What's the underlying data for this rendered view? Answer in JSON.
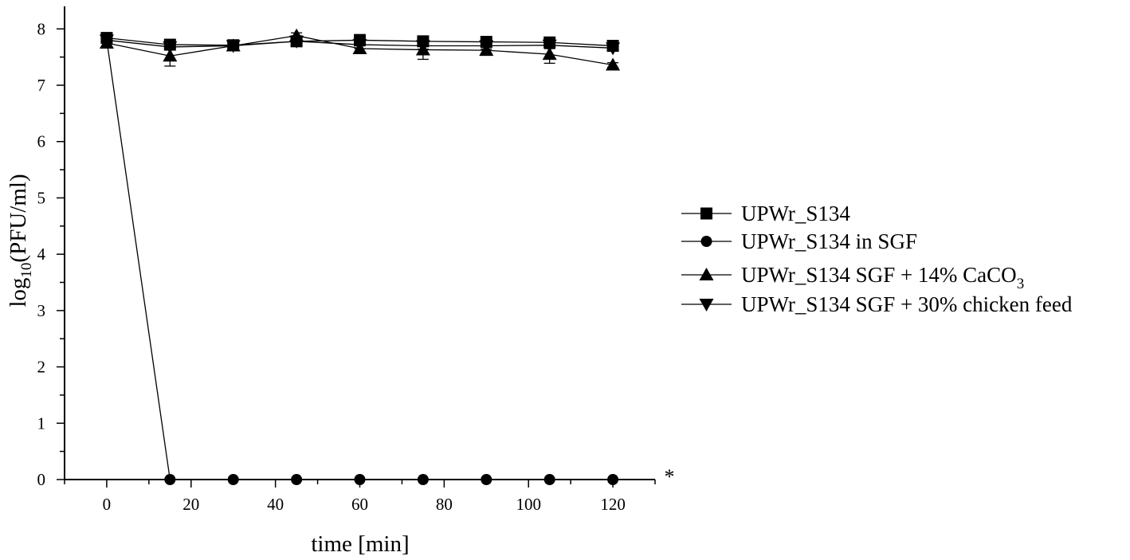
{
  "chart_data": {
    "type": "line",
    "xlabel": "time [min]",
    "ylabel": "log10(PFU/ml)",
    "ylabel_parts": {
      "prefix": "log",
      "subscript": "10",
      "suffix": "(PFU/ml)"
    },
    "xlim": [
      -10,
      130
    ],
    "ylim": [
      0,
      8.4
    ],
    "xticks": [
      0,
      20,
      40,
      60,
      80,
      100,
      120
    ],
    "yticks": [
      0,
      1,
      2,
      3,
      4,
      5,
      6,
      7,
      8
    ],
    "grid": false,
    "legend_position": "right",
    "annotation": {
      "text": "*",
      "x": 130,
      "y": 0
    },
    "x": [
      0,
      15,
      30,
      45,
      60,
      75,
      90,
      105,
      120
    ],
    "series": [
      {
        "name": "UPWr_S134",
        "marker": "square",
        "values": [
          7.84,
          7.72,
          7.71,
          7.78,
          7.8,
          7.78,
          7.77,
          7.76,
          7.7
        ],
        "errors": [
          0.08,
          0.07,
          0.03,
          0.03,
          0.1,
          0.08,
          0.08,
          0.08,
          0.05
        ]
      },
      {
        "name": "UPWr_S134 in SGF",
        "marker": "circle",
        "values": [
          7.8,
          0,
          0,
          0,
          0,
          0,
          0,
          0,
          0
        ],
        "errors": [
          0.05,
          0,
          0,
          0,
          0,
          0,
          0,
          0,
          0
        ]
      },
      {
        "name": "UPWr_S134 SGF + 14% CaCO3",
        "marker": "triangle-up",
        "name_parts": {
          "main": "UPWr_S134 SGF + 14% CaCO",
          "subscript": "3"
        },
        "values": [
          7.75,
          7.52,
          7.7,
          7.88,
          7.65,
          7.63,
          7.62,
          7.55,
          7.36
        ],
        "errors": [
          0.06,
          0.18,
          0.03,
          0.05,
          0.05,
          0.17,
          0.05,
          0.16,
          0.04
        ]
      },
      {
        "name": "UPWr_S134 SGF + 30% chicken feed",
        "marker": "triangle-down",
        "values": [
          7.8,
          7.68,
          7.7,
          7.78,
          7.72,
          7.7,
          7.7,
          7.71,
          7.66
        ],
        "errors": [
          0.05,
          0.05,
          0.03,
          0.05,
          0.07,
          0.06,
          0.06,
          0.06,
          0.05
        ]
      }
    ]
  }
}
